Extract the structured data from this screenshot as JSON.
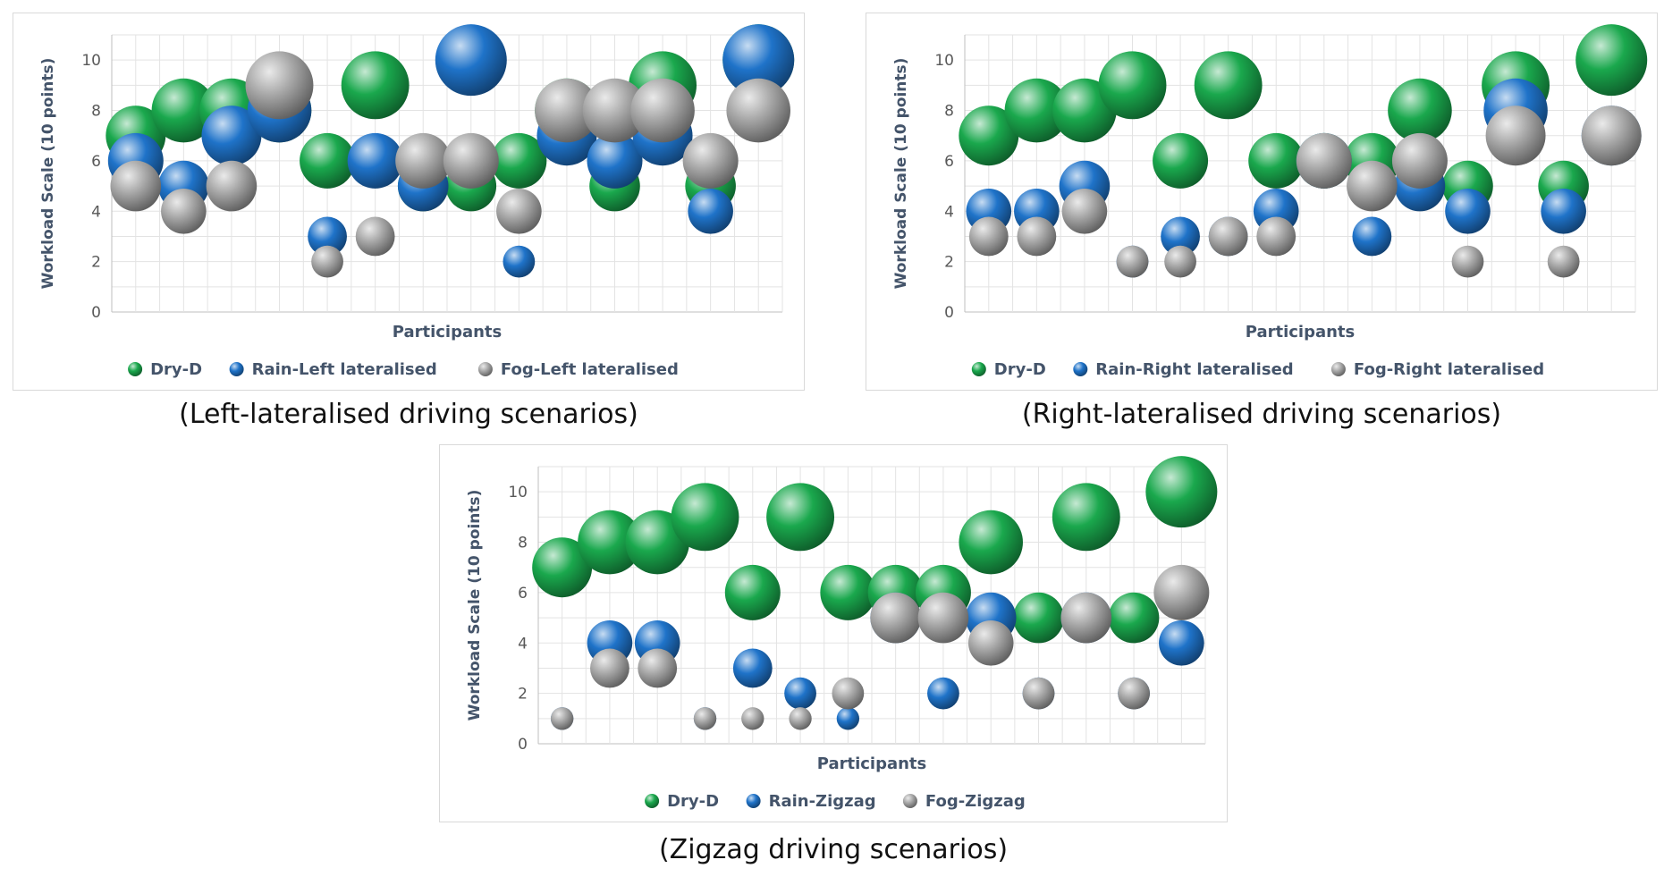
{
  "colors": {
    "green": "#1aa84d",
    "blue": "#1f73c9",
    "grey": "#a9a9a9"
  },
  "chart_data": [
    {
      "type": "bubble",
      "caption": "(Left-lateralised driving scenarios)",
      "xlabel": "Participants",
      "ylabel": "Workload Scale (10 points)",
      "ylim": [
        0,
        11
      ],
      "yticks": [
        0,
        2,
        4,
        6,
        8,
        10
      ],
      "grid": true,
      "legend_position": "bottom",
      "n_participants": 14,
      "series": [
        {
          "name": "Dry-D",
          "color": "#1aa84d",
          "values": [
            7,
            8,
            8,
            8,
            6,
            9,
            5,
            5,
            6,
            8,
            5,
            9,
            5,
            10
          ]
        },
        {
          "name": "Rain-Left lateralised",
          "color": "#1f73c9",
          "values": [
            6,
            5,
            7,
            8,
            3,
            6,
            5,
            10,
            2,
            7,
            6,
            7,
            4,
            10
          ]
        },
        {
          "name": "Fog-Left lateralised",
          "color": "#a9a9a9",
          "values": [
            5,
            4,
            5,
            9,
            2,
            3,
            6,
            6,
            4,
            8,
            8,
            8,
            6,
            8
          ]
        }
      ]
    },
    {
      "type": "bubble",
      "caption": "(Right-lateralised driving scenarios)",
      "xlabel": "Participants",
      "ylabel": "Workload Scale (10 points)",
      "ylim": [
        0,
        11
      ],
      "yticks": [
        0,
        2,
        4,
        6,
        8,
        10
      ],
      "grid": true,
      "legend_position": "bottom",
      "n_participants": 14,
      "series": [
        {
          "name": "Dry-D",
          "color": "#1aa84d",
          "values": [
            7,
            8,
            8,
            9,
            6,
            9,
            6,
            6,
            6,
            8,
            5,
            9,
            5,
            10
          ]
        },
        {
          "name": "Rain-Right lateralised",
          "color": "#1f73c9",
          "values": [
            4,
            4,
            5,
            2,
            3,
            3,
            4,
            6,
            3,
            5,
            4,
            8,
            4,
            7
          ]
        },
        {
          "name": "Fog-Right lateralised",
          "color": "#a9a9a9",
          "values": [
            3,
            3,
            4,
            2,
            2,
            3,
            3,
            6,
            5,
            6,
            2,
            7,
            2,
            7
          ]
        }
      ]
    },
    {
      "type": "bubble",
      "caption": "(Zigzag driving scenarios)",
      "xlabel": "Participants",
      "ylabel": "Workload Scale (10 points)",
      "ylim": [
        0,
        11
      ],
      "yticks": [
        0,
        2,
        4,
        6,
        8,
        10
      ],
      "grid": true,
      "legend_position": "bottom",
      "n_participants": 14,
      "series": [
        {
          "name": "Dry-D",
          "color": "#1aa84d",
          "values": [
            7,
            8,
            8,
            9,
            6,
            9,
            6,
            6,
            6,
            8,
            5,
            9,
            5,
            10
          ]
        },
        {
          "name": "Rain-Zigzag",
          "color": "#1f73c9",
          "values": [
            1,
            4,
            4,
            1,
            3,
            2,
            1,
            5,
            2,
            5,
            2,
            5,
            2,
            4
          ]
        },
        {
          "name": "Fog-Zigzag",
          "color": "#a9a9a9",
          "values": [
            1,
            3,
            3,
            1,
            1,
            1,
            2,
            5,
            5,
            4,
            2,
            5,
            2,
            6
          ]
        }
      ]
    }
  ]
}
